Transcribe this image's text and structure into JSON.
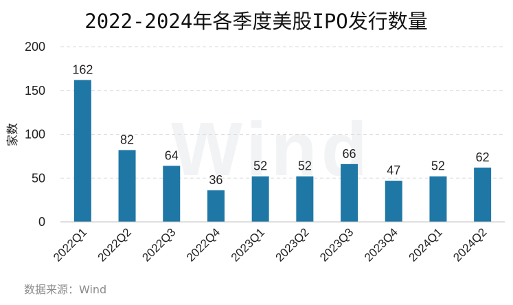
{
  "chart_data": {
    "type": "bar",
    "title": "2022-2024年各季度美股IPO发行数量",
    "ylabel": "家数",
    "xlabel": "",
    "categories": [
      "2022Q1",
      "2022Q2",
      "2022Q3",
      "2022Q4",
      "2023Q1",
      "2023Q2",
      "2023Q3",
      "2023Q4",
      "2024Q1",
      "2024Q2"
    ],
    "values": [
      162,
      82,
      64,
      36,
      52,
      52,
      66,
      47,
      52,
      62
    ],
    "ylim": [
      0,
      200
    ],
    "yticks": [
      0,
      50,
      100,
      150,
      200
    ],
    "grid": true,
    "bar_color": "#1f77a6",
    "source": "数据来源：Wind",
    "watermark": "Wind"
  }
}
